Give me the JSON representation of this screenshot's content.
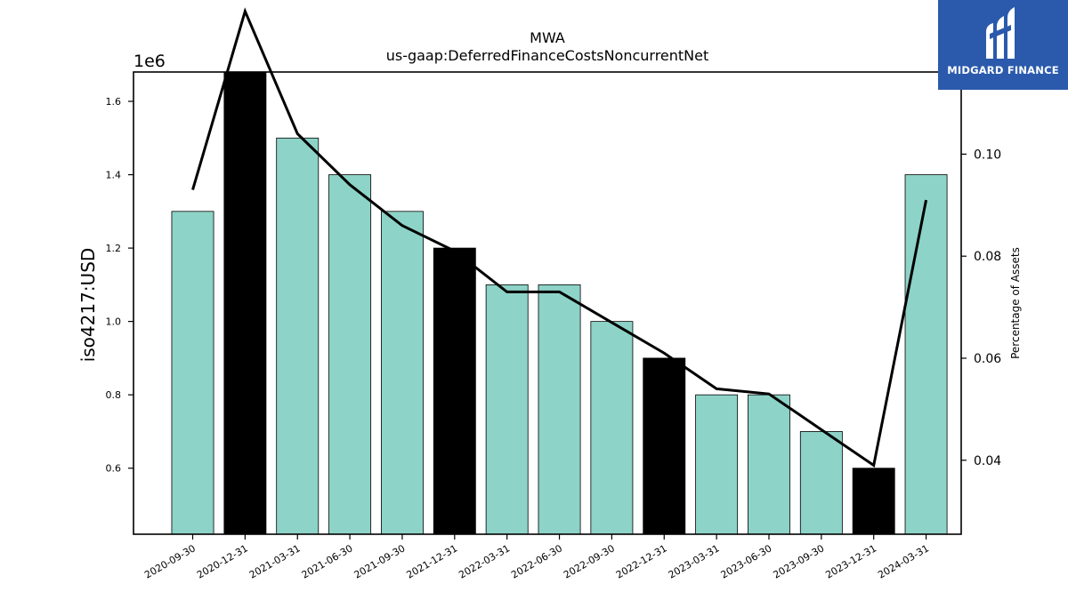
{
  "chart_data": {
    "type": "bar",
    "title": "MWA",
    "subtitle": "us-gaap:DeferredFinanceCostsNoncurrentNet",
    "ylabel": "iso4217:USD",
    "y2label": "Percentage of Assets",
    "y_offset_text": "1e6",
    "categories": [
      "2020-09-30",
      "2020-12-31",
      "2021-03-31",
      "2021-06-30",
      "2021-09-30",
      "2021-12-31",
      "2022-03-31",
      "2022-06-30",
      "2022-09-30",
      "2022-12-31",
      "2023-03-31",
      "2023-06-30",
      "2023-09-30",
      "2023-12-31",
      "2024-03-31"
    ],
    "series": [
      {
        "type": "bar",
        "values": [
          1300000,
          1700000,
          1500000,
          1400000,
          1300000,
          1200000,
          1100000,
          1100000,
          1000000,
          900000,
          800000,
          800000,
          700000,
          600000,
          1400000
        ],
        "highlight": [
          false,
          true,
          false,
          false,
          false,
          true,
          false,
          false,
          false,
          true,
          false,
          false,
          false,
          true,
          false
        ]
      },
      {
        "type": "line",
        "axis": "right",
        "values": [
          0.093,
          0.128,
          0.104,
          0.094,
          0.086,
          0.081,
          0.073,
          0.073,
          0.067,
          0.061,
          0.054,
          0.053,
          0.046,
          0.039,
          0.091
        ]
      }
    ],
    "ylim": [
      0.42,
      1.68
    ],
    "yticks": [
      "0.6",
      "0.8",
      "1.0",
      "1.2",
      "1.4",
      "1.6"
    ],
    "y2lim": [
      0.0255,
      0.1161
    ],
    "y2ticks": [
      "0.04",
      "0.06",
      "0.08",
      "0.10"
    ],
    "colors": {
      "bar": "#8dd3c7",
      "bar_highlight": "#000000",
      "line": "#000000"
    },
    "grid": false
  },
  "logo": {
    "text": "MIDGARD FINANCE",
    "bg": "#2b5aac"
  }
}
